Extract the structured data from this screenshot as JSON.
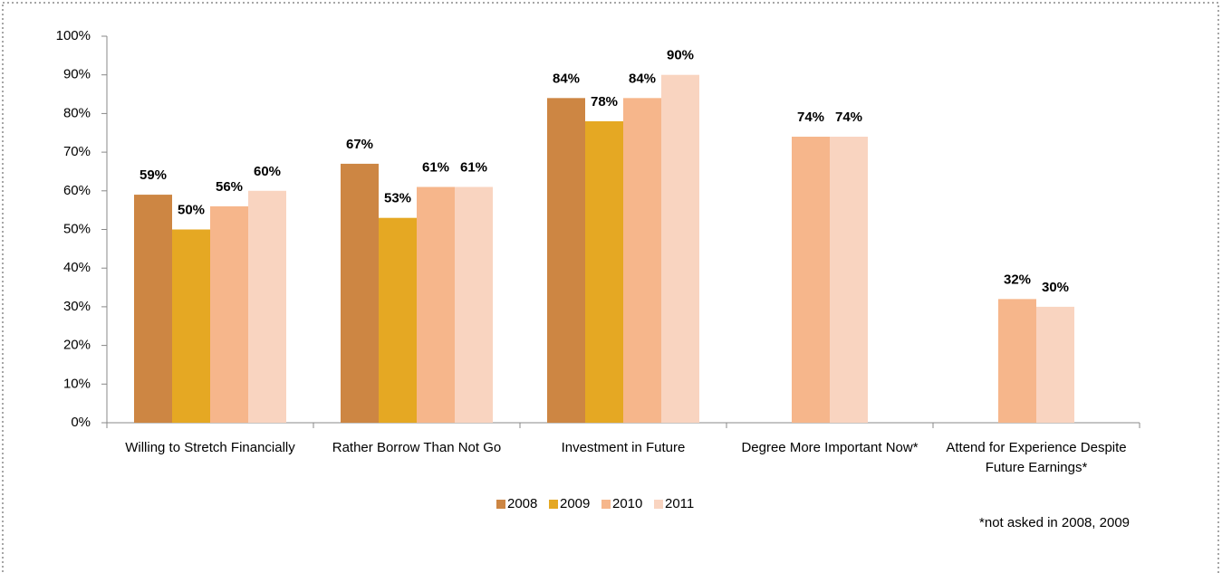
{
  "chart_data": {
    "type": "bar",
    "categories": [
      "Willing to Stretch Financially",
      "Rather Borrow Than Not Go",
      "Investment in Future",
      "Degree More Important Now*",
      "Attend for Experience Despite Future Earnings*"
    ],
    "series": [
      {
        "name": "2008",
        "color": "#cd8643",
        "values": [
          59,
          67,
          84,
          null,
          null
        ],
        "value_labels": [
          "59%",
          "67%",
          "84%",
          null,
          null
        ]
      },
      {
        "name": "2009",
        "color": "#e5a823",
        "values": [
          50,
          53,
          78,
          null,
          null
        ],
        "value_labels": [
          "50%",
          "53%",
          "78%",
          null,
          null
        ]
      },
      {
        "name": "2010",
        "color": "#f6b68b",
        "values": [
          56,
          61,
          84,
          74,
          32
        ],
        "value_labels": [
          "56%",
          "61%",
          "84%",
          "74%",
          "32%"
        ]
      },
      {
        "name": "2011",
        "color": "#f9d4c0",
        "values": [
          60,
          61,
          90,
          74,
          30
        ],
        "value_labels": [
          "60%",
          "61%",
          "90%",
          "74%",
          "30%"
        ]
      }
    ],
    "ylim": [
      0,
      100
    ],
    "yticks": [
      {
        "value": 0,
        "label": "0%"
      },
      {
        "value": 10,
        "label": "10%"
      },
      {
        "value": 20,
        "label": "20%"
      },
      {
        "value": 30,
        "label": "30%"
      },
      {
        "value": 40,
        "label": "40%"
      },
      {
        "value": 50,
        "label": "50%"
      },
      {
        "value": 60,
        "label": "60%"
      },
      {
        "value": 70,
        "label": "70%"
      },
      {
        "value": 80,
        "label": "80%"
      },
      {
        "value": 90,
        "label": "90%"
      },
      {
        "value": 100,
        "label": "100%"
      }
    ],
    "legend": "bottom",
    "annotation": "*not asked in 2008, 2009"
  }
}
